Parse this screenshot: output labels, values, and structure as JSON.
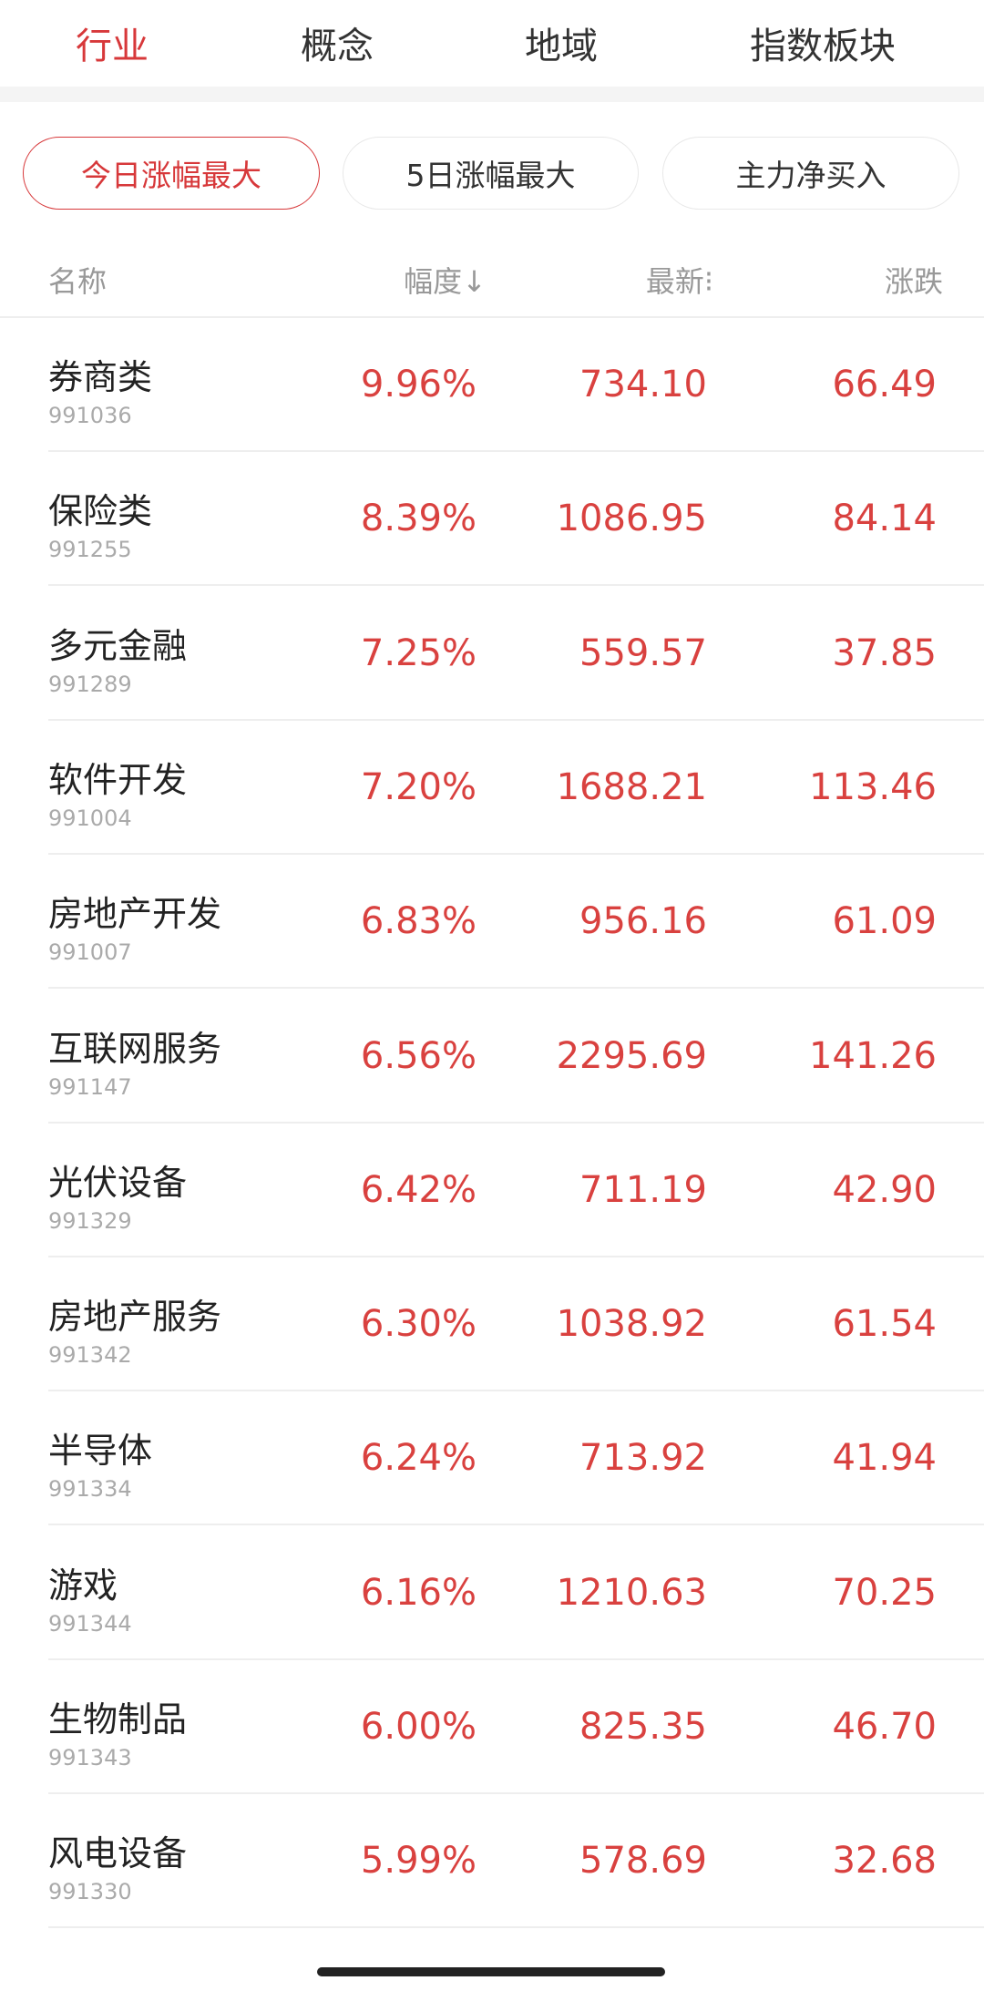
{
  "tabs": [
    {
      "label": "行业",
      "active": true
    },
    {
      "label": "概念"
    },
    {
      "label": "地域"
    },
    {
      "label": "指数板块"
    }
  ],
  "filters": [
    {
      "label": "今日涨幅最大",
      "active": true
    },
    {
      "label": "5日涨幅最大"
    },
    {
      "label": "主力净买入"
    }
  ],
  "columns": {
    "name": "名称",
    "change_pct": "幅度↓",
    "latest": "最新⁝",
    "change": "涨跌"
  },
  "colors": {
    "accent": "#d7383a",
    "up": "#d9413f"
  },
  "rows": [
    {
      "name": "券商类",
      "code": "991036",
      "pct": "9.96%",
      "latest": "734.10",
      "change": "66.49"
    },
    {
      "name": "保险类",
      "code": "991255",
      "pct": "8.39%",
      "latest": "1086.95",
      "change": "84.14"
    },
    {
      "name": "多元金融",
      "code": "991289",
      "pct": "7.25%",
      "latest": "559.57",
      "change": "37.85"
    },
    {
      "name": "软件开发",
      "code": "991004",
      "pct": "7.20%",
      "latest": "1688.21",
      "change": "113.46"
    },
    {
      "name": "房地产开发",
      "code": "991007",
      "pct": "6.83%",
      "latest": "956.16",
      "change": "61.09"
    },
    {
      "name": "互联网服务",
      "code": "991147",
      "pct": "6.56%",
      "latest": "2295.69",
      "change": "141.26"
    },
    {
      "name": "光伏设备",
      "code": "991329",
      "pct": "6.42%",
      "latest": "711.19",
      "change": "42.90"
    },
    {
      "name": "房地产服务",
      "code": "991342",
      "pct": "6.30%",
      "latest": "1038.92",
      "change": "61.54"
    },
    {
      "name": "半导体",
      "code": "991334",
      "pct": "6.24%",
      "latest": "713.92",
      "change": "41.94"
    },
    {
      "name": "游戏",
      "code": "991344",
      "pct": "6.16%",
      "latest": "1210.63",
      "change": "70.25"
    },
    {
      "name": "生物制品",
      "code": "991343",
      "pct": "6.00%",
      "latest": "825.35",
      "change": "46.70"
    },
    {
      "name": "风电设备",
      "code": "991330",
      "pct": "5.99%",
      "latest": "578.69",
      "change": "32.68"
    }
  ]
}
